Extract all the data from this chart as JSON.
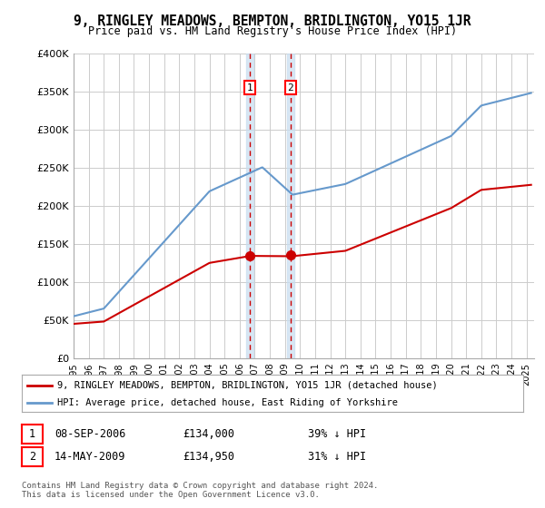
{
  "title": "9, RINGLEY MEADOWS, BEMPTON, BRIDLINGTON, YO15 1JR",
  "subtitle": "Price paid vs. HM Land Registry's House Price Index (HPI)",
  "legend_line1": "9, RINGLEY MEADOWS, BEMPTON, BRIDLINGTON, YO15 1JR (detached house)",
  "legend_line2": "HPI: Average price, detached house, East Riding of Yorkshire",
  "transaction1_date": "08-SEP-2006",
  "transaction1_price": 134000,
  "transaction1_pct": "39% ↓ HPI",
  "transaction1_year": 2006.69,
  "transaction2_date": "14-MAY-2009",
  "transaction2_price": 134950,
  "transaction2_pct": "31% ↓ HPI",
  "transaction2_year": 2009.37,
  "footer": "Contains HM Land Registry data © Crown copyright and database right 2024.\nThis data is licensed under the Open Government Licence v3.0.",
  "red_color": "#cc0000",
  "blue_color": "#6699cc",
  "background_color": "#ffffff",
  "grid_color": "#cccccc",
  "ylim": [
    0,
    400000
  ],
  "xlim": [
    1995,
    2025.5
  ]
}
